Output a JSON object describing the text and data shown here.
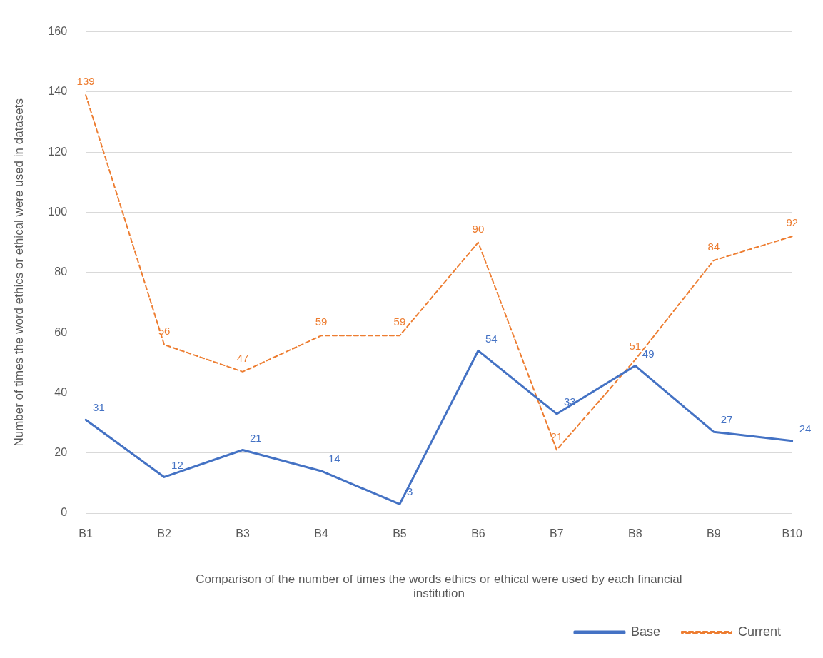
{
  "chart_data": {
    "type": "line",
    "xlabel": "Comparison of the number of times the words ethics or ethical were used by each financial institution",
    "ylabel": "Number of times the word ethics or ethical were used in datasets",
    "categories": [
      "B1",
      "B2",
      "B3",
      "B4",
      "B5",
      "B6",
      "B7",
      "B8",
      "B9",
      "B10"
    ],
    "series": [
      {
        "name": "Base",
        "color": "#4472c4",
        "line_style": "solid",
        "values": [
          31,
          12,
          21,
          14,
          3,
          54,
          33,
          49,
          27,
          24
        ]
      },
      {
        "name": "Current",
        "color": "#ed7d31",
        "line_style": "dashed",
        "values": [
          139,
          56,
          47,
          59,
          59,
          90,
          21,
          51,
          84,
          92
        ]
      }
    ],
    "ylim": [
      0,
      160
    ],
    "yticks": [
      0,
      20,
      40,
      60,
      80,
      100,
      120,
      140,
      160
    ],
    "grid": "y",
    "legend": "bottom right",
    "marker": "none",
    "data_labels": true
  }
}
